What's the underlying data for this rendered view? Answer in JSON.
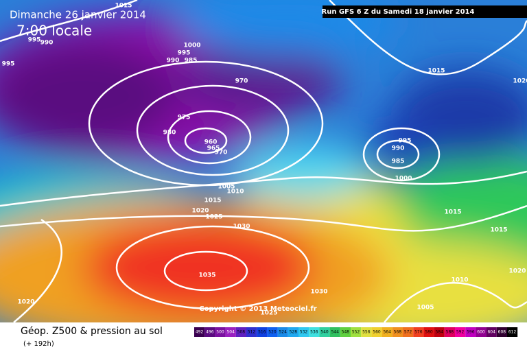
{
  "header": {
    "date": "Dimanche 26 janvier 2014",
    "time": "7:00 locale",
    "run": "Run GFS 6 Z du Samedi 18 janvier 2014"
  },
  "isobar_labels": [
    1015,
    995,
    990,
    995,
    1000,
    995,
    990,
    985,
    970,
    975,
    980,
    960,
    965,
    970,
    995,
    990,
    985,
    1000,
    1015,
    1020,
    1005,
    1010,
    1015,
    1020,
    1025,
    1030,
    1035,
    1030,
    1020,
    1025,
    1015,
    1015,
    1010,
    1020,
    1005
  ],
  "copyright": "Copyright © 2013 Meteociel.fr",
  "footer": {
    "title": "Géop. Z500 & pression au sol",
    "lead": "(+ 192h)"
  },
  "scale": [
    492,
    496,
    500,
    504,
    508,
    512,
    516,
    520,
    524,
    528,
    532,
    536,
    540,
    544,
    548,
    552,
    556,
    560,
    564,
    568,
    572,
    576,
    580,
    584,
    588,
    592,
    596,
    600,
    604,
    608,
    612
  ]
}
